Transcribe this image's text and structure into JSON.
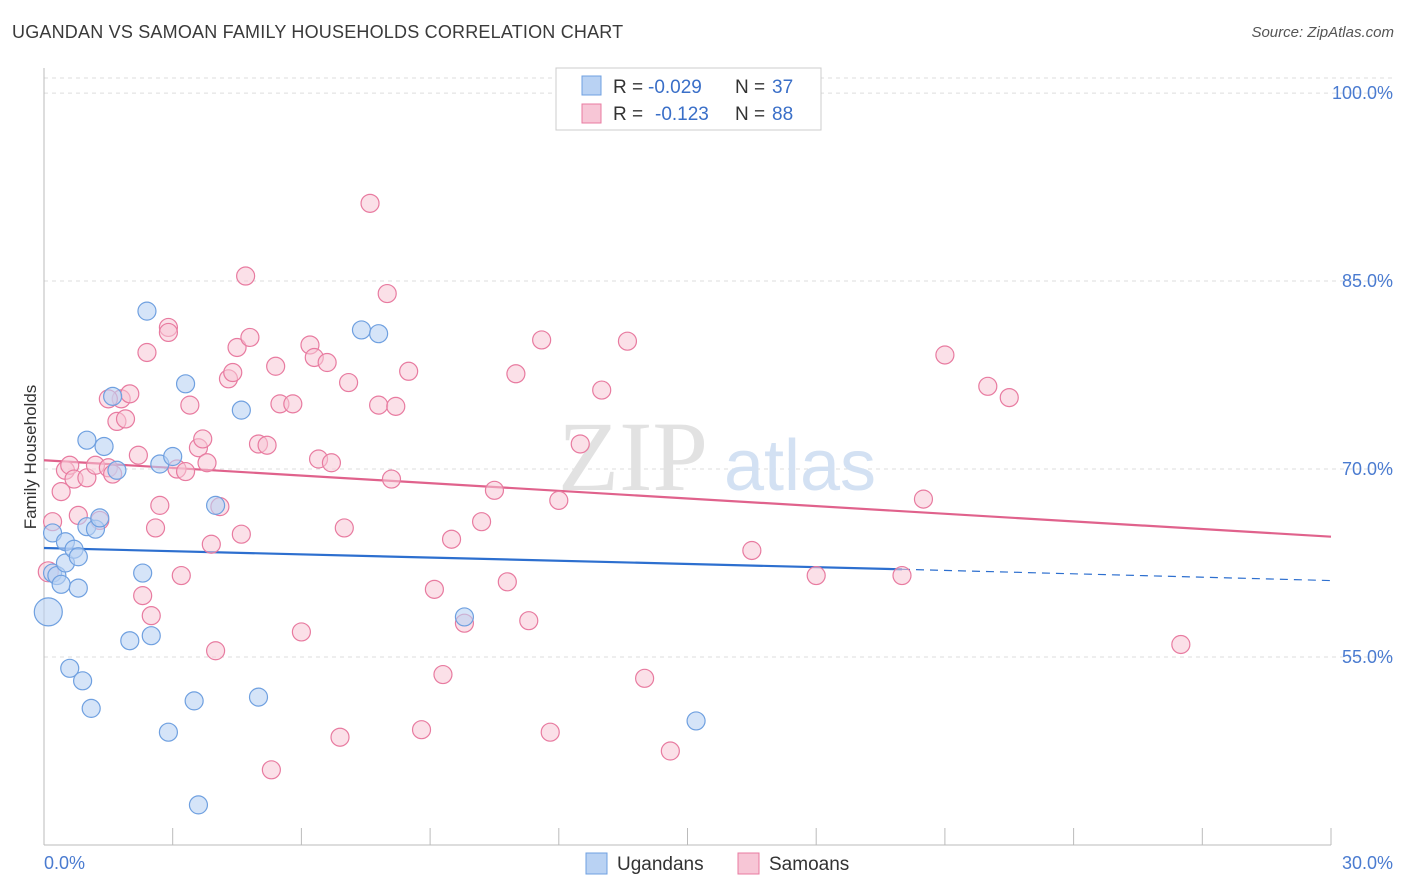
{
  "title": "UGANDAN VS SAMOAN FAMILY HOUSEHOLDS CORRELATION CHART",
  "source": "Source: ZipAtlas.com",
  "watermark": {
    "zip": "ZIP",
    "atlas": "atlas"
  },
  "legend": {
    "row1": {
      "r_label": "R =",
      "r_value": "-0.029",
      "n_label": "N =",
      "n_value": "37"
    },
    "row2": {
      "r_label": "R =",
      "r_value": "-0.123",
      "n_label": "N =",
      "n_value": "88"
    }
  },
  "bottom_legend": {
    "ugandans": "Ugandans",
    "samoans": "Samoans"
  },
  "colors": {
    "blue": "#6fa0e0",
    "blue_fill": "#b9d2f3",
    "pink": "#e87ba0",
    "pink_fill": "#f7c6d6",
    "blue_line": "#2d6fcf",
    "pink_line": "#e0628c",
    "tick": "#4a7bd0"
  },
  "chart_data": {
    "type": "scatter",
    "title": "UGANDAN VS SAMOAN FAMILY HOUSEHOLDS CORRELATION CHART",
    "xlabel": "",
    "ylabel": "Family Households",
    "xlim": [
      0,
      30
    ],
    "ylim": [
      40,
      102
    ],
    "x_tick_labels": [
      "0.0%",
      "30.0%"
    ],
    "y_ticks": [
      55,
      70,
      85,
      100
    ],
    "y_tick_labels": [
      "55.0%",
      "70.0%",
      "85.0%",
      "100.0%"
    ],
    "series": [
      {
        "name": "Ugandans",
        "r": -0.029,
        "n": 37,
        "trend": {
          "x0": 0,
          "y0": 63.7,
          "x1": 20,
          "y1": 62.0,
          "dash_to_x": 30,
          "dash_to_y": 61.1
        },
        "points": [
          [
            0.1,
            58.6,
            14
          ],
          [
            0.2,
            61.7,
            9
          ],
          [
            0.3,
            61.5,
            9
          ],
          [
            0.4,
            60.8,
            9
          ],
          [
            0.5,
            62.5,
            9
          ],
          [
            0.2,
            64.9,
            9
          ],
          [
            0.5,
            64.2,
            9
          ],
          [
            0.7,
            63.6,
            9
          ],
          [
            0.8,
            63.0,
            9
          ],
          [
            0.8,
            60.5,
            9
          ],
          [
            0.6,
            54.1,
            9
          ],
          [
            0.9,
            53.1,
            9
          ],
          [
            1.1,
            50.9,
            9
          ],
          [
            1.0,
            65.4,
            9
          ],
          [
            1.2,
            65.2,
            9
          ],
          [
            1.3,
            66.1,
            9
          ],
          [
            1.0,
            72.3,
            9
          ],
          [
            1.4,
            71.8,
            9
          ],
          [
            1.7,
            69.9,
            9
          ],
          [
            1.6,
            75.8,
            9
          ],
          [
            2.0,
            56.3,
            9
          ],
          [
            2.3,
            61.7,
            9
          ],
          [
            2.5,
            56.7,
            9
          ],
          [
            2.4,
            82.6,
            9
          ],
          [
            2.7,
            70.4,
            9
          ],
          [
            3.0,
            71.0,
            9
          ],
          [
            3.3,
            76.8,
            9
          ],
          [
            3.5,
            51.5,
            9
          ],
          [
            2.9,
            49.0,
            9
          ],
          [
            3.6,
            43.2,
            9
          ],
          [
            4.0,
            67.1,
            9
          ],
          [
            4.6,
            74.7,
            9
          ],
          [
            5.0,
            51.8,
            9
          ],
          [
            7.4,
            81.1,
            9
          ],
          [
            7.8,
            80.8,
            9
          ],
          [
            9.8,
            58.2,
            9
          ],
          [
            15.2,
            49.9,
            9
          ]
        ]
      },
      {
        "name": "Samoans",
        "r": -0.123,
        "n": 88,
        "trend": {
          "x0": 0,
          "y0": 70.7,
          "x1": 30,
          "y1": 64.6
        },
        "points": [
          [
            0.1,
            61.8,
            10
          ],
          [
            0.2,
            65.8,
            9
          ],
          [
            0.4,
            68.2,
            9
          ],
          [
            0.5,
            69.9,
            9
          ],
          [
            0.6,
            70.3,
            9
          ],
          [
            0.7,
            69.2,
            9
          ],
          [
            0.8,
            66.3,
            9
          ],
          [
            1.0,
            69.3,
            9
          ],
          [
            1.2,
            70.3,
            9
          ],
          [
            1.3,
            65.9,
            9
          ],
          [
            1.5,
            70.1,
            9
          ],
          [
            1.6,
            69.6,
            9
          ],
          [
            1.7,
            73.8,
            9
          ],
          [
            1.8,
            75.6,
            9
          ],
          [
            1.9,
            74.0,
            9
          ],
          [
            2.0,
            76.0,
            9
          ],
          [
            2.2,
            71.1,
            9
          ],
          [
            2.3,
            59.9,
            9
          ],
          [
            2.4,
            79.3,
            9
          ],
          [
            2.5,
            58.3,
            9
          ],
          [
            2.6,
            65.3,
            9
          ],
          [
            2.7,
            67.1,
            9
          ],
          [
            2.9,
            81.3,
            9
          ],
          [
            3.1,
            70.0,
            9
          ],
          [
            3.2,
            61.5,
            9
          ],
          [
            3.4,
            75.1,
            9
          ],
          [
            3.6,
            71.7,
            9
          ],
          [
            3.7,
            72.4,
            9
          ],
          [
            3.8,
            70.5,
            9
          ],
          [
            3.9,
            64.0,
            9
          ],
          [
            4.0,
            55.5,
            9
          ],
          [
            4.1,
            67.0,
            9
          ],
          [
            4.3,
            77.2,
            9
          ],
          [
            4.4,
            77.7,
            9
          ],
          [
            4.5,
            79.7,
            9
          ],
          [
            4.6,
            64.8,
            9
          ],
          [
            4.7,
            85.4,
            9
          ],
          [
            4.8,
            80.5,
            9
          ],
          [
            5.0,
            72.0,
            9
          ],
          [
            5.2,
            71.9,
            9
          ],
          [
            5.3,
            46.0,
            9
          ],
          [
            5.4,
            78.2,
            9
          ],
          [
            5.5,
            75.2,
            9
          ],
          [
            5.8,
            75.2,
            9
          ],
          [
            6.0,
            57.0,
            9
          ],
          [
            6.2,
            79.9,
            9
          ],
          [
            6.3,
            78.9,
            9
          ],
          [
            6.4,
            70.8,
            9
          ],
          [
            6.6,
            78.5,
            9
          ],
          [
            6.7,
            70.5,
            9
          ],
          [
            6.9,
            48.6,
            9
          ],
          [
            7.0,
            65.3,
            9
          ],
          [
            7.1,
            76.9,
            9
          ],
          [
            7.6,
            91.2,
            9
          ],
          [
            7.8,
            75.1,
            9
          ],
          [
            8.0,
            84.0,
            9
          ],
          [
            8.1,
            69.2,
            9
          ],
          [
            8.2,
            75.0,
            9
          ],
          [
            8.5,
            77.8,
            9
          ],
          [
            8.8,
            49.2,
            9
          ],
          [
            9.1,
            60.4,
            9
          ],
          [
            9.3,
            53.6,
            9
          ],
          [
            9.5,
            64.4,
            9
          ],
          [
            9.8,
            57.7,
            9
          ],
          [
            10.2,
            65.8,
            9
          ],
          [
            10.5,
            68.3,
            9
          ],
          [
            10.8,
            61.0,
            9
          ],
          [
            11.0,
            77.6,
            9
          ],
          [
            11.3,
            57.9,
            9
          ],
          [
            11.6,
            80.3,
            9
          ],
          [
            11.8,
            49.0,
            9
          ],
          [
            12.0,
            67.5,
            9
          ],
          [
            12.5,
            72.0,
            9
          ],
          [
            13.0,
            76.3,
            9
          ],
          [
            13.6,
            80.2,
            9
          ],
          [
            14.0,
            53.3,
            9
          ],
          [
            14.6,
            47.5,
            9
          ],
          [
            16.5,
            63.5,
            9
          ],
          [
            18.0,
            61.5,
            9
          ],
          [
            20.5,
            67.6,
            9
          ],
          [
            20.0,
            61.5,
            9
          ],
          [
            21.0,
            79.1,
            9
          ],
          [
            22.0,
            76.6,
            9
          ],
          [
            22.5,
            75.7,
            9
          ],
          [
            26.5,
            56.0,
            9
          ],
          [
            1.5,
            75.6,
            9
          ],
          [
            3.3,
            69.8,
            9
          ],
          [
            2.9,
            80.9,
            9
          ]
        ]
      }
    ]
  }
}
